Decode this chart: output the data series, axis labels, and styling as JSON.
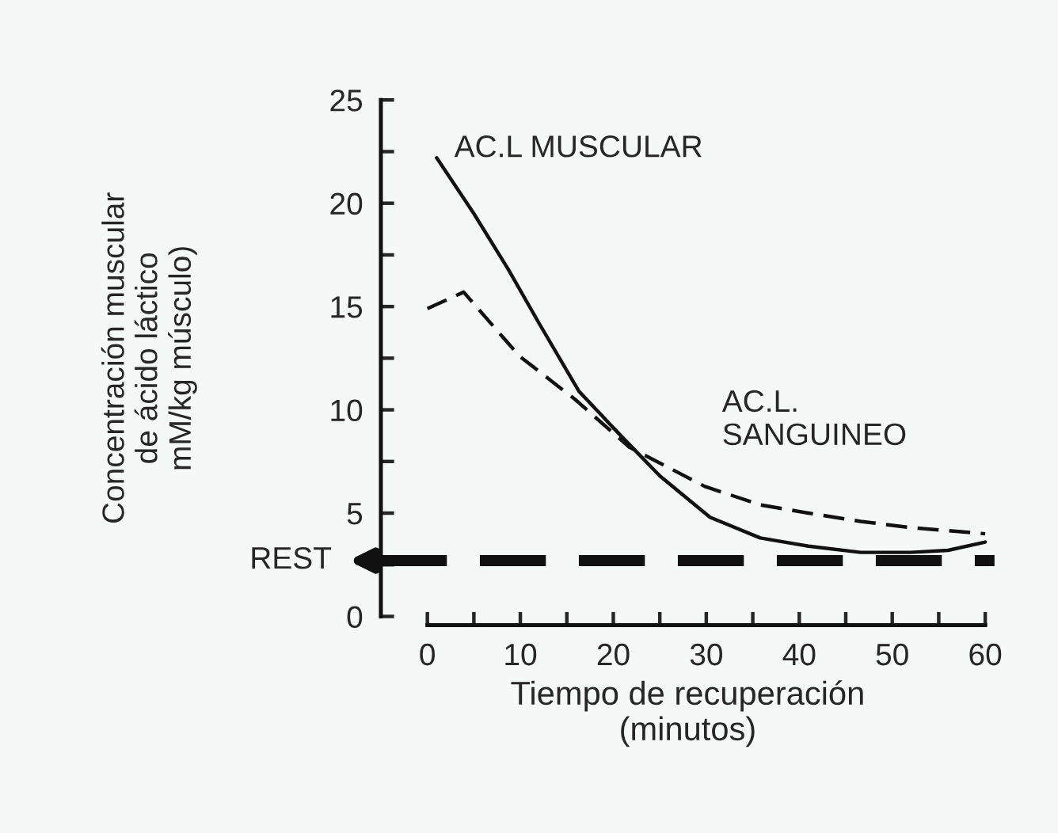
{
  "chart_data": {
    "type": "line",
    "xlabel": "Tiempo de recuperación\n(minutos)",
    "ylabel": "Concentración muscular\nde ácido láctico\nmM/kg músculo)",
    "series": [
      {
        "name": "AC.L MUSCULAR",
        "color": "#111111",
        "line_style": "solid",
        "x": [
          1,
          5,
          8.7,
          12,
          16.3,
          20.7,
          25,
          30.4,
          35.8,
          41,
          46.6,
          52,
          56,
          60
        ],
        "values": [
          22.2,
          19.5,
          16.8,
          14.2,
          10.9,
          8.8,
          6.8,
          4.8,
          3.8,
          3.4,
          3.1,
          3.1,
          3.2,
          3.6
        ]
      },
      {
        "name": "AC.L.\nSANGUINEO",
        "color": "#111111",
        "line_style": "dashed",
        "x": [
          0,
          3.9,
          9.9,
          15.9,
          21.7,
          29.8,
          35.8,
          41,
          46.6,
          52,
          60
        ],
        "values": [
          14.9,
          15.7,
          12.6,
          10.5,
          8.2,
          6.3,
          5.4,
          5.0,
          4.6,
          4.3,
          4.0
        ]
      }
    ],
    "ref_lines": [
      {
        "axis": "y",
        "value": 2.7,
        "label": "REST",
        "color": "#111111",
        "line_style": "dashed"
      }
    ],
    "xlim": [
      -5,
      61
    ],
    "ylim": [
      0,
      25
    ],
    "xticks": [
      0,
      {
        "value": 5,
        "label": null
      },
      10,
      {
        "value": 15,
        "label": null
      },
      20,
      {
        "value": 25,
        "label": null
      },
      30,
      {
        "value": 35,
        "label": null
      },
      40,
      {
        "value": 45,
        "label": null
      },
      50,
      {
        "value": 55,
        "label": null
      },
      60
    ],
    "yticks": [
      0,
      {
        "value": 2.5,
        "label": null
      },
      5,
      {
        "value": 7.5,
        "label": null
      },
      10,
      {
        "value": 12.5,
        "label": null
      },
      15,
      {
        "value": 17.5,
        "label": null
      },
      20,
      {
        "value": 22.5,
        "label": null
      },
      25
    ],
    "grid": false,
    "legend": false
  }
}
